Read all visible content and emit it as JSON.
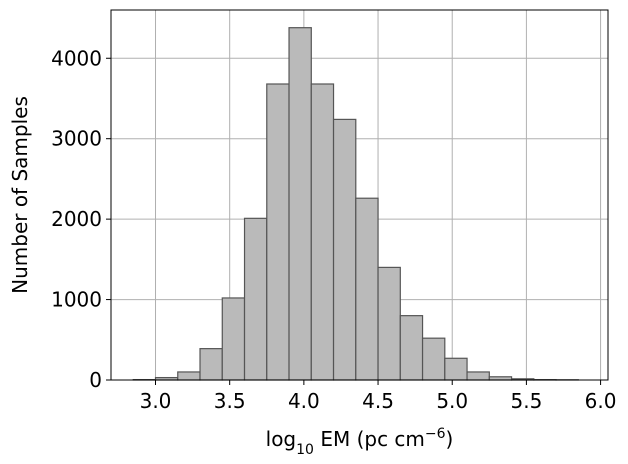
{
  "chart_data": {
    "type": "bar",
    "xlabel_parts": {
      "prefix": "log",
      "sub": "10",
      "main": " EM (pc cm",
      "sup": "−6",
      "suffix": ")"
    },
    "ylabel": "Number of Samples",
    "xlim": [
      2.7,
      6.05
    ],
    "ylim": [
      0,
      4600
    ],
    "xticks": [
      3.0,
      3.5,
      4.0,
      4.5,
      5.0,
      5.5,
      6.0
    ],
    "xtick_labels": [
      "3.0",
      "3.5",
      "4.0",
      "4.5",
      "5.0",
      "5.5",
      "6.0"
    ],
    "yticks": [
      0,
      1000,
      2000,
      3000,
      4000
    ],
    "ytick_labels": [
      "0",
      "1000",
      "2000",
      "3000",
      "4000"
    ],
    "grid": true,
    "bin_edges": [
      2.85,
      3.0,
      3.15,
      3.3,
      3.45,
      3.6,
      3.75,
      3.9,
      4.05,
      4.2,
      4.35,
      4.5,
      4.65,
      4.8,
      4.95,
      5.1,
      5.25,
      5.4,
      5.55,
      5.7,
      5.85
    ],
    "counts": [
      5,
      30,
      100,
      390,
      1020,
      2010,
      3680,
      4380,
      3680,
      3240,
      2260,
      1400,
      800,
      520,
      270,
      100,
      40,
      15,
      5,
      3
    ]
  },
  "colors": {
    "bar_fill": "#bababa",
    "bar_edge": "#555555",
    "grid": "#b0b0b0"
  }
}
